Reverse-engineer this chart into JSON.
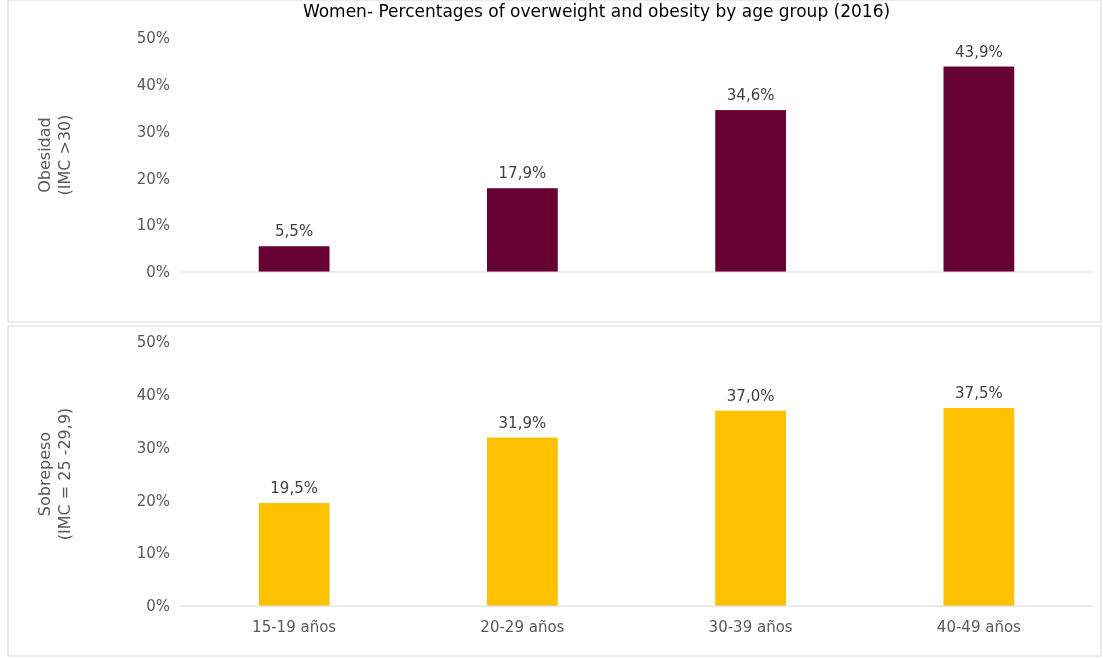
{
  "chart_data": [
    {
      "type": "bar",
      "title": "Women- Percentages of overweight and obesity by age group (2016)",
      "ylabel": "Obesidad\n(IMC >30)",
      "categories": [
        null,
        null,
        null,
        null
      ],
      "values": [
        5.5,
        17.9,
        34.6,
        43.9
      ],
      "color": "#660033",
      "value_labels": [
        "5,5%",
        "17,9%",
        "34,6%",
        "43,9%"
      ],
      "ylim": [
        0,
        50
      ],
      "yticks": [
        {
          "value": 0,
          "label": "0%"
        },
        {
          "value": 10,
          "label": "10%"
        },
        {
          "value": 20,
          "label": "20%"
        },
        {
          "value": 30,
          "label": "30%"
        },
        {
          "value": 40,
          "label": "40%"
        },
        {
          "value": 50,
          "label": "50%"
        }
      ]
    },
    {
      "type": "bar",
      "ylabel": "Sobrepeso\n(IMC = 25 -29,9)",
      "categories": [
        "15-19 años",
        "20-29 años",
        "30-39 años",
        "40-49 años"
      ],
      "values": [
        19.5,
        31.9,
        37.0,
        37.5
      ],
      "color": "#ffc000",
      "value_labels": [
        "19,5%",
        "31,9%",
        "37,0%",
        "37,5%"
      ],
      "ylim": [
        0,
        50
      ],
      "yticks": [
        {
          "value": 0,
          "label": "0%"
        },
        {
          "value": 10,
          "label": "10%"
        },
        {
          "value": 20,
          "label": "20%"
        },
        {
          "value": 30,
          "label": "30%"
        },
        {
          "value": 40,
          "label": "40%"
        },
        {
          "value": 50,
          "label": "50%"
        }
      ]
    }
  ]
}
